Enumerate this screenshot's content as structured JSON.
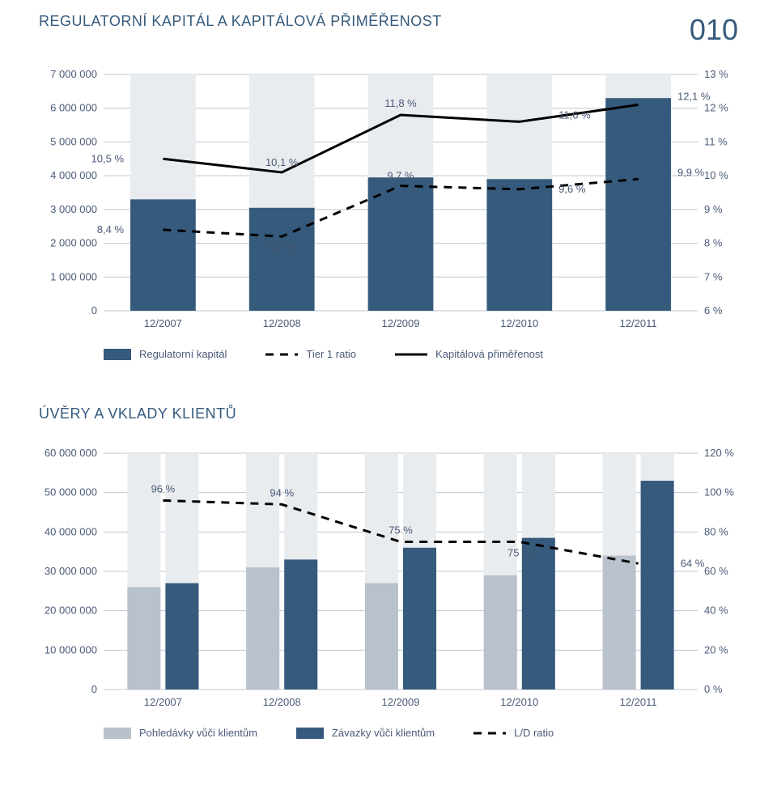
{
  "page": {
    "title": "REGULATORNÍ KAPITÁL A KAPITÁLOVÁ PŘIMĚŘENOST",
    "number": "010"
  },
  "chart1": {
    "type": "combo-bar-line",
    "categories": [
      "12/2007",
      "12/2008",
      "12/2009",
      "12/2010",
      "12/2011"
    ],
    "bars": {
      "values_left_axis": [
        3300000,
        3050000,
        3950000,
        3900000,
        6300000
      ],
      "background_max": 7000000,
      "fill": "#355a7c",
      "bg_fill": "#e9ecef"
    },
    "line_solid": {
      "label": "Kapitálová přiměřenost",
      "values_pct": [
        10.5,
        10.1,
        11.8,
        11.6,
        12.1
      ],
      "show_labels": [
        "10,5 %",
        "10,1 %",
        "11,8 %",
        "11,6 %",
        "12,1 %"
      ],
      "stroke": "#000000",
      "stroke_width": 3
    },
    "line_dashed": {
      "label": "Tier 1 ratio",
      "values_pct": [
        8.4,
        8.2,
        9.7,
        9.6,
        9.9
      ],
      "show_labels": [
        "8,4 %",
        "8,2 %",
        "9,7 %",
        "9,6 %",
        "9,9 %"
      ],
      "stroke": "#000000",
      "stroke_width": 3,
      "dash": "10,8"
    },
    "left_axis": {
      "min": 0,
      "max": 7000000,
      "ticks": [
        0,
        1000000,
        2000000,
        3000000,
        4000000,
        5000000,
        6000000,
        7000000
      ],
      "labels": [
        "0",
        "1 000 000",
        "2 000 000",
        "3 000 000",
        "4 000 000",
        "5 000 000",
        "6 000 000",
        "7 000 000"
      ]
    },
    "right_axis": {
      "min": 6,
      "max": 13,
      "ticks": [
        6,
        7,
        8,
        9,
        10,
        11,
        12,
        13
      ],
      "labels": [
        "6 %",
        "7 %",
        "8 %",
        "9 %",
        "10 %",
        "11 %",
        "12 %",
        "13 %"
      ]
    },
    "grid_color": "#bfc7d1",
    "text_color": "#4a5a78",
    "legend": {
      "bar_label": "Regulatorní kapitál",
      "dashed_label": "Tier 1 ratio",
      "solid_label": "Kapitálová přiměřenost"
    },
    "font_size": 13
  },
  "section2_title": "ÚVĚRY A VKLADY KLIENTŮ",
  "chart2": {
    "type": "combo-grouped-bar-line",
    "categories": [
      "12/2007",
      "12/2008",
      "12/2009",
      "12/2010",
      "12/2011"
    ],
    "bars_a": {
      "label": "Pohledávky vůči klientům",
      "values": [
        26000000,
        31000000,
        27000000,
        29000000,
        34000000
      ],
      "fill": "#b9c2cc"
    },
    "bars_b": {
      "label": "Závazky vůči klientům",
      "values": [
        27000000,
        33000000,
        36000000,
        38500000,
        53000000
      ],
      "fill": "#355a7c"
    },
    "left_axis": {
      "min": 0,
      "max": 60000000,
      "ticks": [
        0,
        10000000,
        20000000,
        30000000,
        40000000,
        50000000,
        60000000
      ],
      "labels": [
        "0",
        "10 000 000",
        "20 000 000",
        "30 000 000",
        "40 000 000",
        "50 000 000",
        "60 000 000"
      ]
    },
    "right_axis": {
      "min": 0,
      "max": 120,
      "ticks": [
        0,
        20,
        40,
        60,
        80,
        100,
        120
      ],
      "labels": [
        "0 %",
        "20 %",
        "40 %",
        "60 %",
        "80 %",
        "100 %",
        "120 %"
      ]
    },
    "line_dashed": {
      "label": "L/D ratio",
      "values_pct": [
        96,
        94,
        75,
        75,
        64
      ],
      "show_labels": [
        "96 %",
        "94 %",
        "75 %",
        "75 %",
        "64 %"
      ],
      "stroke": "#000000",
      "stroke_width": 3,
      "dash": "10,8"
    },
    "grid_color": "#bfc7d1",
    "text_color": "#4a5a78",
    "bg_fill": "#e9ecef",
    "legend": {
      "a_label": "Pohledávky vůči klientům",
      "b_label": "Závazky vůči klientům",
      "line_label": "L/D ratio"
    },
    "font_size": 13
  }
}
